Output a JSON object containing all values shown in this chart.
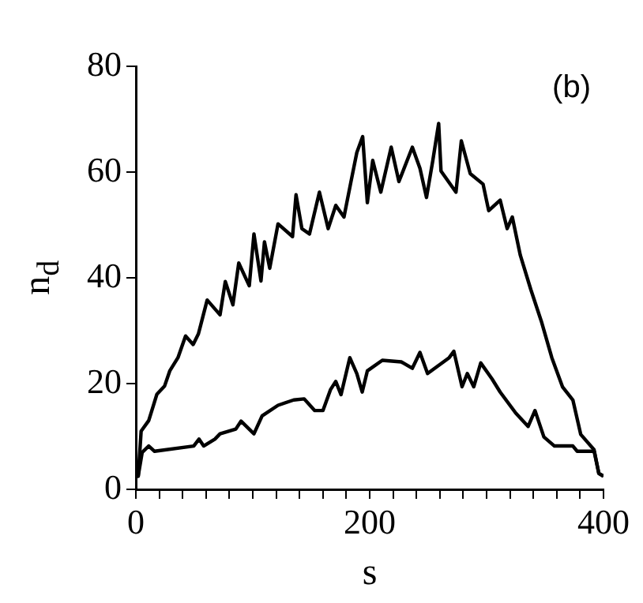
{
  "chart_data": {
    "type": "line",
    "xlabel": "s",
    "ylabel": "n$_{d}$",
    "annotations": [
      "(b)"
    ],
    "xlim": [
      0,
      400
    ],
    "xticks": [
      0,
      {
        "value": 20,
        "label": null
      },
      {
        "value": 40,
        "label": null
      },
      {
        "value": 60,
        "label": null
      },
      {
        "value": 80,
        "label": null
      },
      {
        "value": 100,
        "label": null
      },
      {
        "value": 120,
        "label": null
      },
      {
        "value": 140,
        "label": null
      },
      {
        "value": 160,
        "label": null
      },
      {
        "value": 180,
        "label": null
      },
      200,
      {
        "value": 220,
        "label": null
      },
      {
        "value": 240,
        "label": null
      },
      {
        "value": 260,
        "label": null
      },
      {
        "value": 280,
        "label": null
      },
      {
        "value": 300,
        "label": null
      },
      {
        "value": 320,
        "label": null
      },
      {
        "value": 340,
        "label": null
      },
      {
        "value": 360,
        "label": null
      },
      {
        "value": 380,
        "label": null
      },
      400
    ],
    "ylim": [
      0,
      80
    ],
    "yticks": [
      0,
      20,
      40,
      60,
      80
    ],
    "grid": false,
    "legend": false,
    "marker": "none",
    "line_style": "solid",
    "series": [
      {
        "color": "#000000",
        "x": [
          0,
          2,
          4.5,
          11,
          18,
          24.5,
          29,
          36,
          42.5,
          49,
          53.5,
          61,
          72,
          76.5,
          83,
          88,
          97,
          101,
          107,
          110,
          114.5,
          121.6,
          134,
          137,
          142,
          148.5,
          157,
          164.5,
          171,
          178,
          184,
          189,
          194,
          198,
          202.6,
          209.5,
          218.4,
          225,
          236.5,
          243,
          248.6,
          254,
          259,
          261,
          273.8,
          278.4,
          286,
          297,
          301.8,
          311.6,
          317.6,
          322,
          328.8,
          337.8,
          346.8,
          355.8,
          364.9,
          373.8,
          380.5,
          391.9,
          396,
          400
        ],
        "values": [
          2.5,
          2.5,
          11,
          13,
          18,
          19.5,
          22.4,
          24.9,
          29,
          27.4,
          29.4,
          35.8,
          33,
          39.3,
          34.9,
          42.8,
          38.5,
          48.3,
          39.4,
          46.8,
          41.8,
          50.2,
          47.8,
          55.7,
          49.3,
          48.3,
          56.2,
          49.3,
          53.7,
          51.5,
          58.2,
          63.7,
          66.7,
          54.2,
          62.2,
          56.2,
          64.7,
          58.2,
          64.7,
          60.7,
          55.2,
          62.2,
          69.2,
          60.2,
          56.2,
          65.9,
          59.7,
          57.7,
          52.7,
          54.7,
          49.3,
          51.5,
          44.3,
          37.8,
          31.8,
          24.9,
          19.4,
          16.9,
          10.4,
          7.5,
          3,
          2.5
        ]
      },
      {
        "color": "#000000",
        "x": [
          0,
          2,
          5.4,
          11,
          16,
          49.5,
          54,
          58,
          67.6,
          72,
          85.5,
          90,
          101,
          108,
          121.6,
          135,
          144,
          153,
          160,
          166.6,
          171,
          175.5,
          183,
          189,
          193.6,
          198,
          210.8,
          227,
          236.5,
          243,
          249.5,
          268,
          272,
          279,
          283.5,
          289,
          295,
          304.6,
          311.6,
          325,
          335.5,
          341.4,
          349,
          358,
          373.8,
          377.5,
          392,
          396,
          400
        ],
        "values": [
          2.5,
          2.5,
          7,
          8.2,
          7.2,
          8.2,
          9.5,
          8.2,
          9.5,
          10.5,
          11.4,
          12.9,
          10.5,
          13.9,
          15.9,
          16.9,
          17.1,
          14.9,
          14.9,
          18.9,
          20.4,
          17.9,
          24.9,
          21.9,
          18.4,
          22.4,
          24.4,
          24.1,
          22.9,
          25.9,
          21.9,
          24.9,
          26.1,
          19.4,
          21.9,
          19.4,
          23.9,
          20.9,
          18.4,
          14.4,
          11.9,
          14.9,
          9.9,
          8.2,
          8.2,
          7.2,
          7.2,
          3,
          2.5
        ]
      }
    ]
  }
}
